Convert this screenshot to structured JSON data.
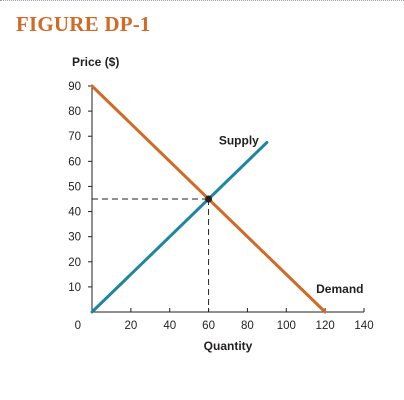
{
  "figure": {
    "title": "FIGURE DP-1"
  },
  "chart_data": {
    "type": "line",
    "title": "FIGURE DP-1",
    "xlabel": "Quantity",
    "ylabel": "Price ($)",
    "xlim": [
      0,
      140
    ],
    "ylim": [
      0,
      90
    ],
    "x_ticks": [
      20,
      40,
      60,
      80,
      100,
      120,
      140
    ],
    "y_ticks": [
      10,
      20,
      30,
      40,
      50,
      60,
      70,
      80,
      90
    ],
    "origin_label": "0",
    "grid": false,
    "series": [
      {
        "name": "Supply",
        "color": "#1f86a0",
        "x": [
          0,
          90
        ],
        "y": [
          0,
          67.5
        ]
      },
      {
        "name": "Demand",
        "color": "#d06a26",
        "x": [
          0,
          120
        ],
        "y": [
          90,
          0
        ]
      }
    ],
    "equilibrium": {
      "x": 60,
      "y": 45
    }
  }
}
